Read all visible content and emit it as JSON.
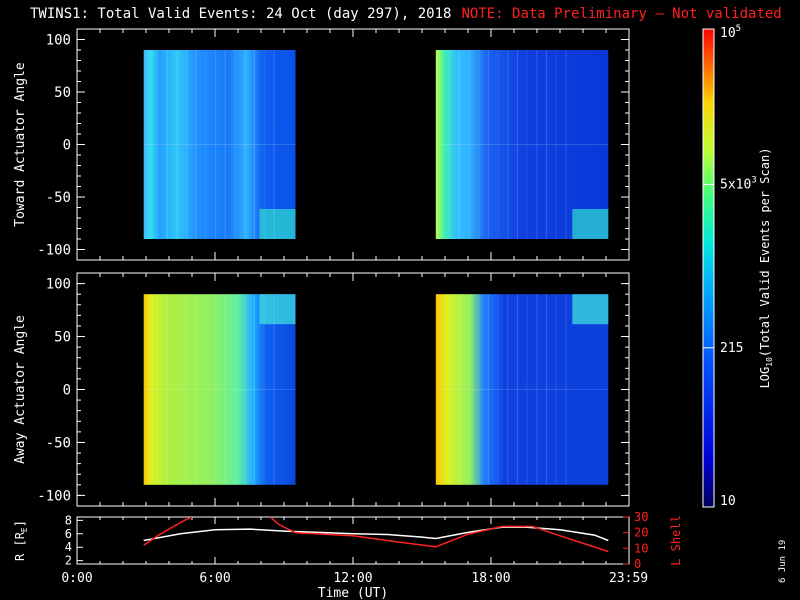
{
  "header": {
    "title": "TWINS1: Total Valid Events: 24 Oct (day 297), 2018",
    "note": "NOTE: Data Preliminary — Not validated"
  },
  "date_stamp": "6 Jun 19",
  "colorbar": {
    "label": "LOG10(Total Valid Events per Scan)",
    "label_main": "LOG",
    "label_sub": "10",
    "label_rest": "(Total Valid Events per Scan)",
    "ticks": [
      {
        "value": 100000,
        "base": "10",
        "exp": "5"
      },
      {
        "value": 5000,
        "base": "5x10",
        "exp": "3"
      },
      {
        "value": 215,
        "base": "215",
        "exp": ""
      },
      {
        "value": 10,
        "base": "10",
        "exp": ""
      }
    ],
    "range": [
      10,
      100000
    ],
    "scale": "log"
  },
  "chart_data": [
    {
      "type": "heatmap",
      "ylabel": "Toward Actuator Angle",
      "ylim": [
        -110,
        110
      ],
      "yticks": [
        "100",
        "50",
        "0",
        "-50",
        "-100"
      ],
      "ytick_values": [
        100,
        50,
        0,
        -50,
        -100
      ],
      "xlim_hours": [
        0,
        24
      ],
      "data_blocks": [
        {
          "x_start_hours": 2.9,
          "x_end_hours": 9.5,
          "y_range": [
            -90,
            90
          ]
        },
        {
          "x_start_hours": 15.6,
          "x_end_hours": 23.1,
          "y_range": [
            -90,
            90
          ]
        }
      ]
    },
    {
      "type": "heatmap",
      "ylabel": "Away Actuator Angle",
      "ylim": [
        -110,
        110
      ],
      "yticks": [
        "100",
        "50",
        "0",
        "-50",
        "-100"
      ],
      "ytick_values": [
        100,
        50,
        0,
        -50,
        -100
      ],
      "xlim_hours": [
        0,
        24
      ],
      "data_blocks": [
        {
          "x_start_hours": 2.9,
          "x_end_hours": 9.5,
          "y_range": [
            -90,
            90
          ]
        },
        {
          "x_start_hours": 15.6,
          "x_end_hours": 23.1,
          "y_range": [
            -90,
            90
          ]
        }
      ]
    },
    {
      "type": "line",
      "ylabel_left": "R [RE]",
      "ylabel_left_main": "R [R",
      "ylabel_left_sub": "E",
      "ylabel_left_end": "]",
      "ylabel_right": "L Shell",
      "yticks_left": [
        "8",
        "6",
        "4",
        "2"
      ],
      "ytick_values_left": [
        8,
        6,
        4,
        2
      ],
      "ylim_left": [
        1.5,
        8.5
      ],
      "yticks_right": [
        "30",
        "20",
        "10",
        "0"
      ],
      "ytick_values_right": [
        30,
        20,
        10,
        0
      ],
      "ylim_right": [
        0,
        30
      ],
      "xlabel": "Time (UT)",
      "xticks": [
        "0:00",
        "6:00",
        "12:00",
        "18:00",
        "23:59"
      ],
      "xtick_hours": [
        0,
        6,
        12,
        18,
        23.98
      ],
      "series": [
        {
          "name": "R",
          "axis": "left",
          "color": "#ffffff",
          "x": [
            2.9,
            4.5,
            6.0,
            7.5,
            9.0,
            10.5,
            12.0,
            13.5,
            15.0,
            15.6,
            17.0,
            18.5,
            19.5,
            21.0,
            22.5,
            23.1
          ],
          "y": [
            5.0,
            6.0,
            6.6,
            6.7,
            6.4,
            6.2,
            6.0,
            5.9,
            5.5,
            5.3,
            6.2,
            7.0,
            7.0,
            6.6,
            5.8,
            5.0
          ]
        },
        {
          "name": "L Shell",
          "axis": "right",
          "color": "#ff2020",
          "segments": [
            {
              "x": [
                2.9,
                3.5,
                4.2,
                4.7,
                5.0
              ],
              "y": [
                12,
                18,
                24,
                28,
                30
              ]
            },
            {
              "x": [
                8.4,
                8.8,
                9.5,
                12.0,
                14.0,
                15.6,
                17.0,
                18.5,
                19.8,
                21.0,
                23.1
              ],
              "y": [
                30,
                25,
                20,
                18,
                14,
                11,
                19,
                24,
                24,
                18,
                8
              ]
            }
          ]
        }
      ]
    }
  ]
}
